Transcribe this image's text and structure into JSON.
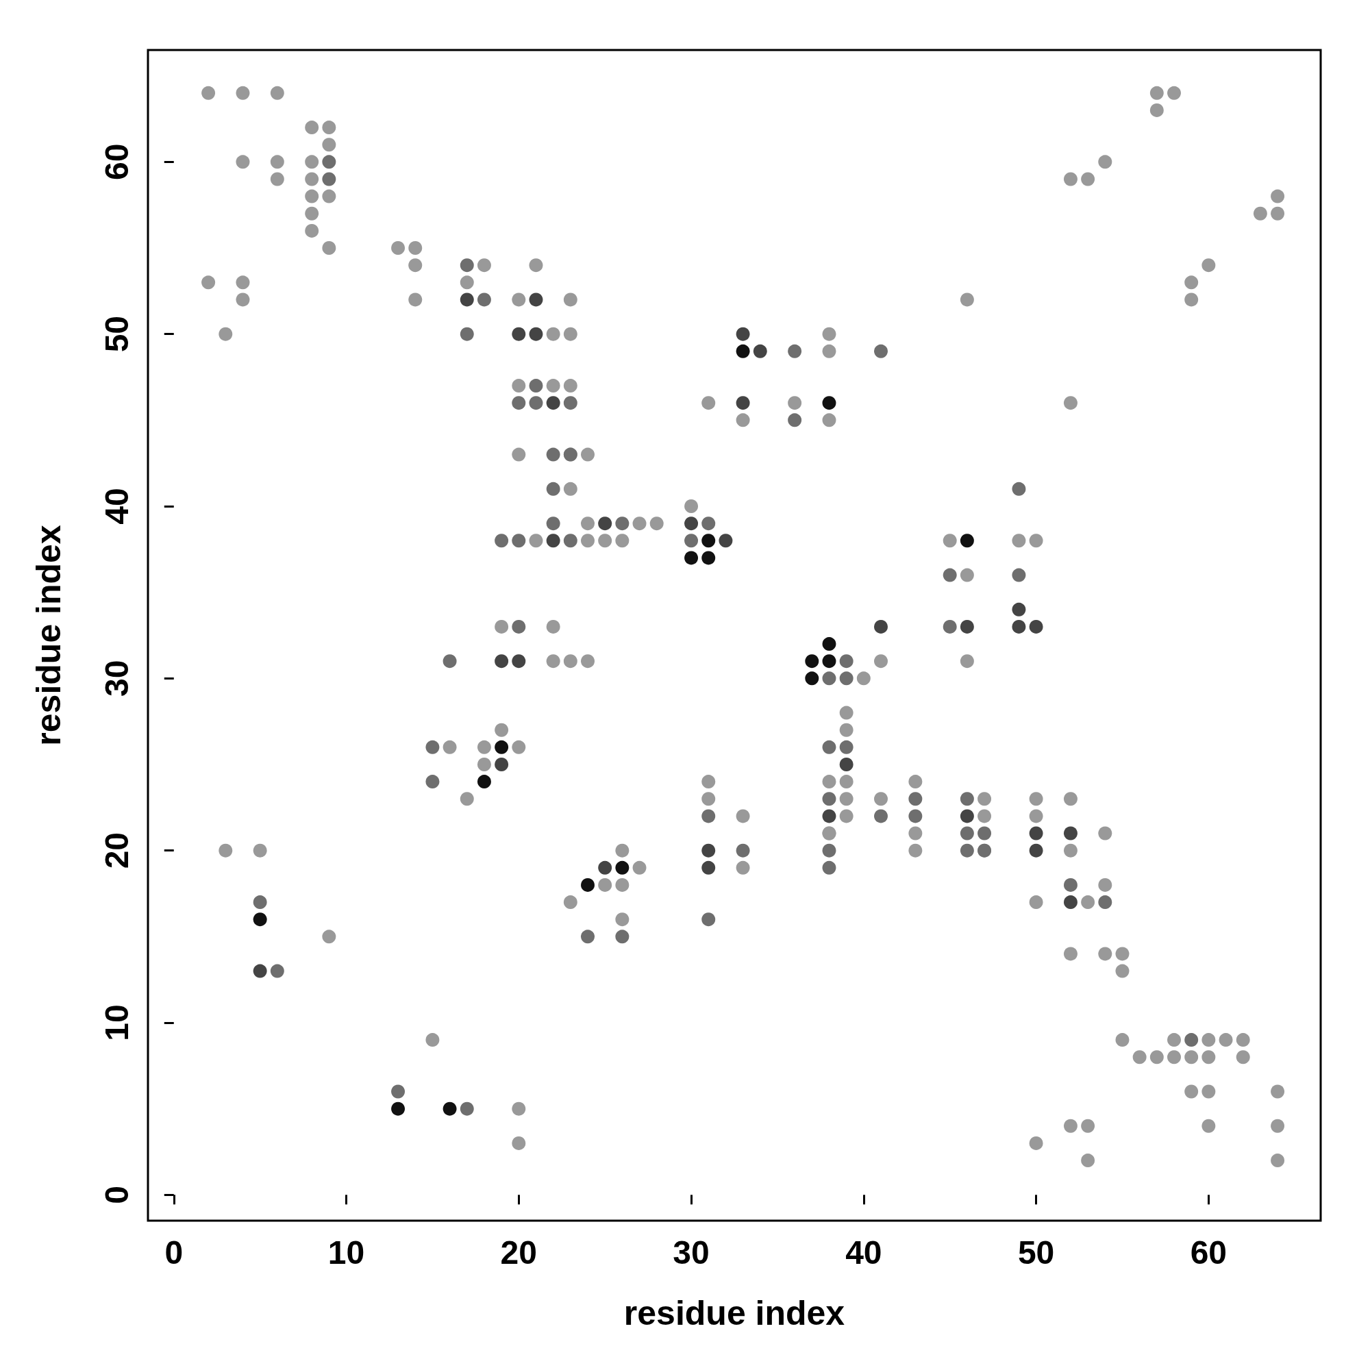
{
  "chart_data": {
    "type": "scatter",
    "xlabel": "residue index",
    "ylabel": "residue index",
    "xlim": [
      -1.5,
      66.5
    ],
    "ylim": [
      -1.5,
      66.5
    ],
    "xticks": [
      0,
      10,
      20,
      30,
      40,
      50,
      60
    ],
    "yticks": [
      0,
      10,
      20,
      30,
      40,
      50,
      60
    ],
    "marker": "circle",
    "grid": false,
    "series": [
      {
        "color": "#999999",
        "x": [
          2,
          4,
          6,
          8,
          9,
          9,
          4,
          6,
          8,
          6,
          8,
          8,
          9,
          8,
          8,
          9,
          2,
          4,
          4,
          3,
          13,
          14,
          14,
          14,
          18,
          17,
          21,
          20,
          23,
          22,
          23,
          20,
          22,
          23,
          20,
          24,
          23,
          23,
          24,
          27,
          28,
          21,
          24,
          25,
          26,
          30,
          38,
          38,
          31,
          36,
          33,
          38,
          46,
          19,
          22,
          22,
          23,
          24,
          16,
          18,
          20,
          19,
          18,
          17,
          40,
          41,
          39,
          39,
          38,
          39,
          39,
          39,
          38,
          38,
          41,
          43,
          43,
          43,
          45,
          46,
          46,
          49,
          50,
          47,
          47,
          47,
          50,
          50,
          50,
          52,
          54,
          52,
          54,
          53,
          52,
          54,
          55,
          55,
          52,
          31,
          31,
          33,
          33,
          26,
          27,
          25,
          26,
          23,
          26,
          3,
          5,
          9,
          15,
          20,
          20,
          50,
          52,
          53,
          53,
          55,
          56,
          57,
          58,
          58,
          59,
          60,
          60,
          61,
          62,
          62,
          59,
          60,
          60,
          64,
          64,
          64,
          57,
          58,
          57,
          52,
          53,
          54,
          63,
          64,
          64,
          59,
          59,
          60
        ],
        "values": [
          64,
          64,
          64,
          62,
          62,
          61,
          60,
          60,
          60,
          59,
          59,
          58,
          58,
          57,
          56,
          55,
          53,
          53,
          52,
          50,
          55,
          55,
          54,
          52,
          54,
          53,
          54,
          52,
          52,
          50,
          50,
          47,
          47,
          47,
          43,
          43,
          43,
          41,
          39,
          39,
          39,
          38,
          38,
          38,
          38,
          40,
          50,
          49,
          46,
          46,
          45,
          45,
          52,
          33,
          33,
          31,
          31,
          31,
          26,
          26,
          26,
          27,
          25,
          23,
          30,
          31,
          28,
          27,
          24,
          24,
          23,
          22,
          21,
          21,
          23,
          24,
          21,
          20,
          38,
          36,
          31,
          38,
          38,
          23,
          22,
          20,
          23,
          22,
          17,
          23,
          21,
          20,
          18,
          17,
          14,
          14,
          14,
          13,
          46,
          24,
          23,
          22,
          19,
          20,
          19,
          18,
          18,
          17,
          16,
          20,
          20,
          15,
          9,
          5,
          3,
          3,
          4,
          4,
          2,
          9,
          8,
          8,
          9,
          8,
          8,
          9,
          8,
          9,
          9,
          8,
          6,
          6,
          4,
          6,
          4,
          2,
          64,
          64,
          63,
          59,
          59,
          60,
          57,
          58,
          57,
          53,
          52,
          54
        ]
      },
      {
        "color": "#6e6e6e",
        "x": [
          9,
          9,
          17,
          18,
          17,
          21,
          20,
          21,
          23,
          22,
          22,
          23,
          22,
          26,
          19,
          20,
          23,
          31,
          30,
          36,
          41,
          36,
          20,
          16,
          15,
          15,
          39,
          38,
          39,
          39,
          38,
          38,
          38,
          38,
          41,
          43,
          43,
          45,
          45,
          49,
          49,
          46,
          46,
          47,
          47,
          46,
          52,
          54,
          31,
          33,
          31,
          24,
          26,
          5,
          6,
          13,
          17,
          59
        ],
        "values": [
          60,
          59,
          54,
          52,
          50,
          47,
          46,
          46,
          46,
          43,
          41,
          43,
          39,
          39,
          38,
          38,
          38,
          39,
          38,
          49,
          49,
          45,
          33,
          31,
          26,
          24,
          31,
          30,
          30,
          26,
          26,
          23,
          20,
          19,
          22,
          23,
          22,
          36,
          33,
          41,
          36,
          23,
          21,
          21,
          20,
          20,
          18,
          17,
          22,
          20,
          16,
          15,
          15,
          17,
          13,
          6,
          5,
          9
        ]
      },
      {
        "color": "#444444",
        "x": [
          17,
          21,
          20,
          21,
          22,
          25,
          22,
          30,
          32,
          33,
          34,
          33,
          19,
          20,
          19,
          39,
          38,
          41,
          46,
          49,
          49,
          50,
          46,
          50,
          50,
          52,
          52,
          31,
          31,
          25,
          5
        ],
        "values": [
          52,
          52,
          50,
          50,
          46,
          39,
          38,
          39,
          38,
          50,
          49,
          46,
          31,
          31,
          25,
          25,
          22,
          33,
          33,
          34,
          33,
          33,
          22,
          21,
          20,
          21,
          17,
          20,
          19,
          19,
          13
        ]
      },
      {
        "color": "#111111",
        "x": [
          31,
          30,
          31,
          33,
          38,
          19,
          18,
          38,
          37,
          38,
          37,
          46,
          24,
          26,
          5,
          13,
          16
        ],
        "values": [
          38,
          37,
          37,
          49,
          46,
          26,
          24,
          32,
          31,
          31,
          30,
          38,
          18,
          19,
          16,
          5,
          5
        ]
      }
    ]
  }
}
